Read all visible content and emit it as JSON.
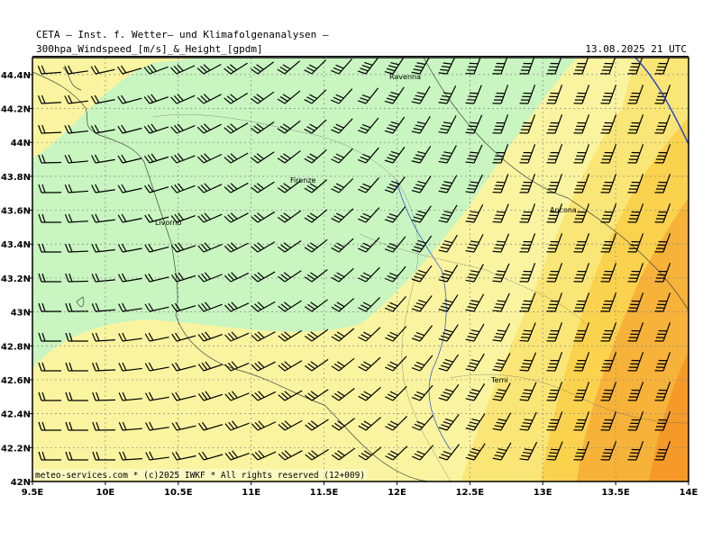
{
  "header": {
    "institute": "CETA — Inst. f. Wetter— und Klimafolgenanalysen —",
    "product": "300hpa_Windspeed_[m/s]_&_Height_[gpdm]",
    "datetime": "13.08.2025 21 UTC"
  },
  "map": {
    "lon_range": [
      9.5,
      14.0
    ],
    "lat_range": [
      42.0,
      44.5
    ],
    "lon_ticks": [
      "9.5E",
      "10E",
      "10.5E",
      "11E",
      "11.5E",
      "12E",
      "12.5E",
      "13E",
      "13.5E",
      "14E"
    ],
    "lat_ticks": [
      "42N",
      "42.2N",
      "42.4N",
      "42.6N",
      "42.8N",
      "43N",
      "43.2N",
      "43.4N",
      "43.6N",
      "43.8N",
      "44N",
      "44.2N",
      "44.4N"
    ],
    "grid": true,
    "fill_colors": {
      "light_green": "#c8f5c0",
      "pale_yellow": "#faf4a0",
      "light_yellow": "#fae676",
      "yellow": "#fbd24e",
      "orange": "#f7b23a",
      "dark_orange": "#f59a28"
    },
    "contour_color": "#2b47c8",
    "cities": [
      {
        "name": "Ravenna"
      },
      {
        "name": "Firenze"
      },
      {
        "name": "Livorno"
      },
      {
        "name": "Ancona"
      },
      {
        "name": "Terni"
      }
    ]
  },
  "footer": {
    "credit": "meteo-services.com * (c)2025 IWKF * All rights reserved (12+009)"
  }
}
